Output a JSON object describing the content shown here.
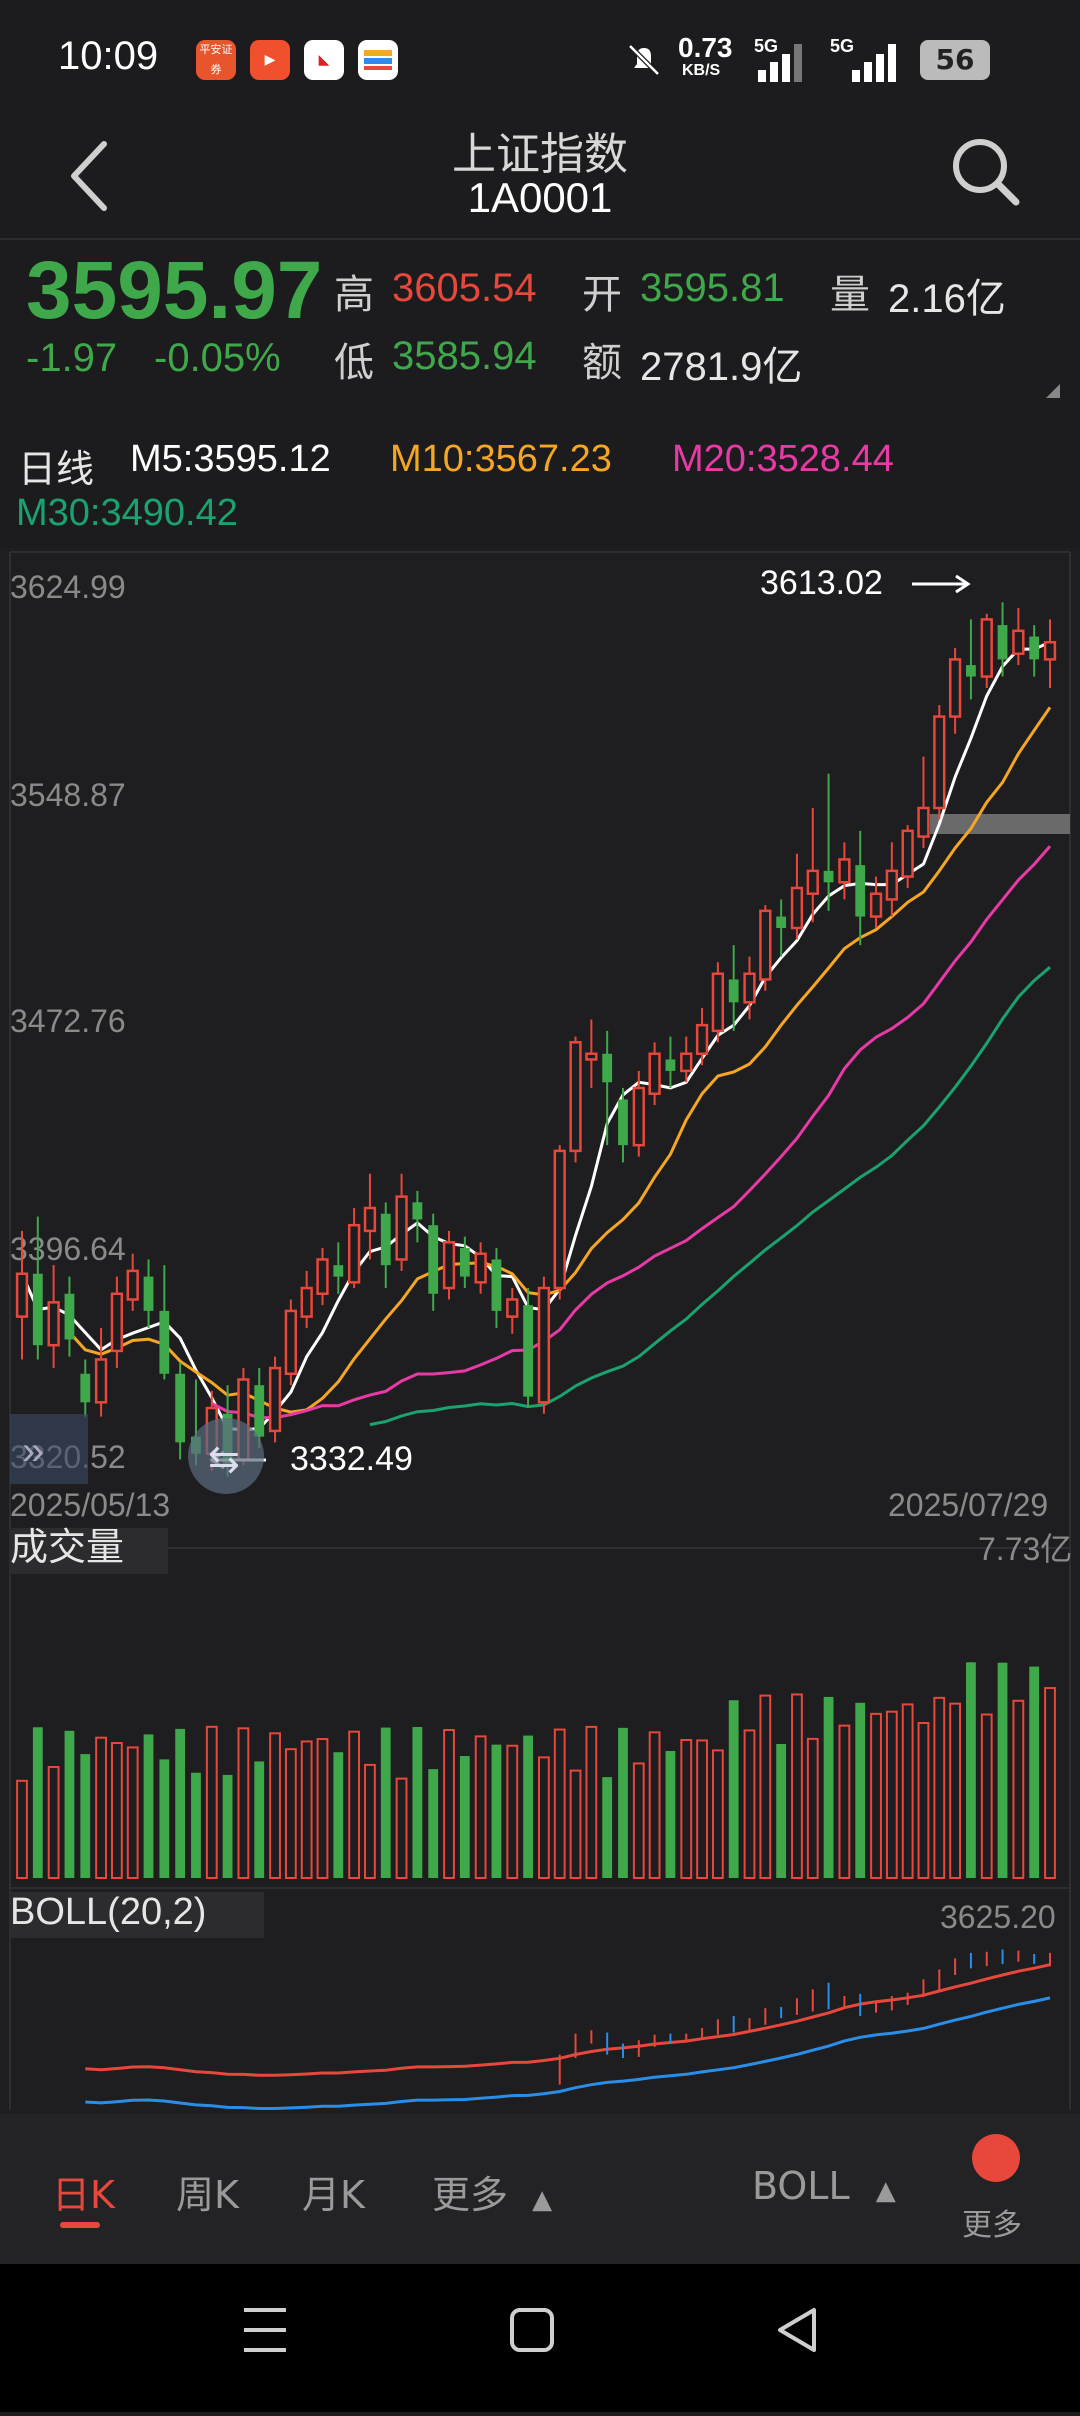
{
  "status_bar": {
    "time": "10:09",
    "net_speed": "0.73",
    "net_unit": "KB/S",
    "signal1": "5G",
    "signal2": "5G",
    "battery": "56",
    "app_icon_1": "平安证券"
  },
  "header": {
    "title": "上证指数",
    "code": "1A0001"
  },
  "quote": {
    "price": "3595.97",
    "change": "-1.97",
    "change_pct": "-0.05%",
    "high_label": "高",
    "high": "3605.54",
    "low_label": "低",
    "low": "3585.94",
    "open_label": "开",
    "open": "3595.81",
    "amount_label": "额",
    "amount": "2781.9亿",
    "volume_label": "量",
    "volume": "2.16亿"
  },
  "ma_legend": {
    "period": "日线",
    "m5": "M5:3595.12",
    "m10": "M10:3567.23",
    "m20": "M20:3528.44",
    "m30": "M30:3490.42"
  },
  "colors": {
    "up": "#e8473b",
    "down": "#3fa84a",
    "m5": "#ffffff",
    "m10": "#f5a623",
    "m20": "#e83aa6",
    "m30": "#1aa36f",
    "boll_mid": "#2a8ee8"
  },
  "chart": {
    "y_ticks": [
      "3624.99",
      "3548.87",
      "3472.76",
      "3396.64",
      "3320.52"
    ],
    "high_marker": "3613.02",
    "low_marker": "3332.49",
    "date_start": "2025/05/13",
    "date_end": "2025/07/29",
    "volume_title": "成交量",
    "volume_max": "7.73亿",
    "boll_title": "BOLL(20,2)",
    "boll_max": "3625.20"
  },
  "chart_data": {
    "type": "candlestick",
    "y_axis_ticks": [
      3624.99,
      3548.87,
      3472.76,
      3396.64,
      3320.52
    ],
    "ylim": [
      3320.52,
      3624.99
    ],
    "x_range": [
      "2025/05/13",
      "2025/07/29"
    ],
    "annotations": [
      {
        "label": "3613.02",
        "kind": "high"
      },
      {
        "label": "3332.49",
        "kind": "low"
      }
    ],
    "series": [
      {
        "name": "M5",
        "latest": 3595.12
      },
      {
        "name": "M10",
        "latest": 3567.23
      },
      {
        "name": "M20",
        "latest": 3528.44
      },
      {
        "name": "M30",
        "latest": 3490.42
      }
    ],
    "candles": [
      [
        3370,
        3385,
        3355,
        3400
      ],
      [
        3385,
        3360,
        3355,
        3405
      ],
      [
        3360,
        3375,
        3352,
        3388
      ],
      [
        3378,
        3362,
        3356,
        3384
      ],
      [
        3350,
        3340,
        3335,
        3355
      ],
      [
        3340,
        3355,
        3335,
        3366
      ],
      [
        3358,
        3378,
        3352,
        3384
      ],
      [
        3376,
        3386,
        3372,
        3392
      ],
      [
        3384,
        3372,
        3366,
        3390
      ],
      [
        3372,
        3350,
        3348,
        3388
      ],
      [
        3350,
        3326,
        3320,
        3354
      ],
      [
        3328,
        3322,
        3318,
        3348
      ],
      [
        3322,
        3338,
        3316,
        3344
      ],
      [
        3336,
        3318,
        3314,
        3346
      ],
      [
        3320,
        3348,
        3318,
        3352
      ],
      [
        3346,
        3328,
        3324,
        3352
      ],
      [
        3330,
        3352,
        3326,
        3356
      ],
      [
        3350,
        3372,
        3346,
        3376
      ],
      [
        3370,
        3380,
        3366,
        3386
      ],
      [
        3378,
        3390,
        3374,
        3394
      ],
      [
        3388,
        3384,
        3378,
        3396
      ],
      [
        3382,
        3402,
        3380,
        3408
      ],
      [
        3400,
        3408,
        3390,
        3420
      ],
      [
        3406,
        3388,
        3380,
        3410
      ],
      [
        3390,
        3412,
        3386,
        3420
      ],
      [
        3410,
        3404,
        3396,
        3414
      ],
      [
        3402,
        3378,
        3372,
        3406
      ],
      [
        3380,
        3396,
        3376,
        3400
      ],
      [
        3394,
        3384,
        3380,
        3398
      ],
      [
        3382,
        3392,
        3378,
        3396
      ],
      [
        3390,
        3372,
        3366,
        3394
      ],
      [
        3370,
        3376,
        3364,
        3380
      ],
      [
        3374,
        3342,
        3338,
        3380
      ],
      [
        3340,
        3380,
        3336,
        3384
      ],
      [
        3380,
        3428,
        3376,
        3430
      ],
      [
        3428,
        3466,
        3424,
        3468
      ],
      [
        3460,
        3462,
        3450,
        3474
      ],
      [
        3462,
        3452,
        3430,
        3470
      ],
      [
        3446,
        3430,
        3424,
        3450
      ],
      [
        3430,
        3450,
        3426,
        3456
      ],
      [
        3448,
        3462,
        3444,
        3466
      ],
      [
        3460,
        3456,
        3450,
        3468
      ],
      [
        3456,
        3462,
        3452,
        3468
      ],
      [
        3462,
        3472,
        3458,
        3478
      ],
      [
        3470,
        3490,
        3466,
        3494
      ],
      [
        3488,
        3480,
        3470,
        3500
      ],
      [
        3480,
        3490,
        3474,
        3496
      ],
      [
        3488,
        3512,
        3484,
        3514
      ],
      [
        3510,
        3506,
        3496,
        3516
      ],
      [
        3506,
        3520,
        3502,
        3532
      ],
      [
        3518,
        3526,
        3508,
        3548
      ],
      [
        3526,
        3522,
        3512,
        3560
      ],
      [
        3522,
        3530,
        3516,
        3536
      ],
      [
        3528,
        3510,
        3500,
        3540
      ],
      [
        3510,
        3518,
        3506,
        3524
      ],
      [
        3516,
        3526,
        3510,
        3536
      ],
      [
        3524,
        3540,
        3520,
        3542
      ],
      [
        3538,
        3548,
        3534,
        3566
      ],
      [
        3548,
        3580,
        3544,
        3584
      ],
      [
        3580,
        3600,
        3574,
        3604
      ],
      [
        3598,
        3594,
        3586,
        3614
      ],
      [
        3594,
        3614,
        3590,
        3616
      ],
      [
        3612,
        3600,
        3594,
        3620
      ],
      [
        3602,
        3610,
        3598,
        3618
      ],
      [
        3608,
        3600,
        3594,
        3612
      ],
      [
        3600,
        3606,
        3590,
        3614
      ]
    ]
  },
  "bottom_tabs": {
    "day": "日K",
    "week": "周K",
    "month": "月K",
    "more": "更多",
    "indicator": "BOLL",
    "more_fab": "更多"
  }
}
